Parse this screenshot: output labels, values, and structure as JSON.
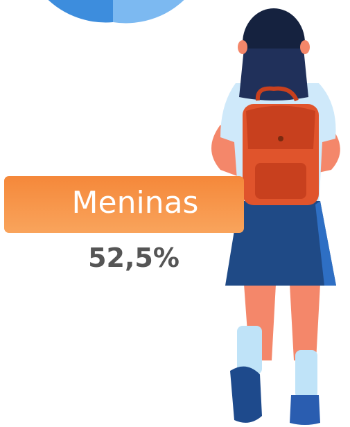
{
  "label": "Meninas",
  "value_text": "52,5%"
}
